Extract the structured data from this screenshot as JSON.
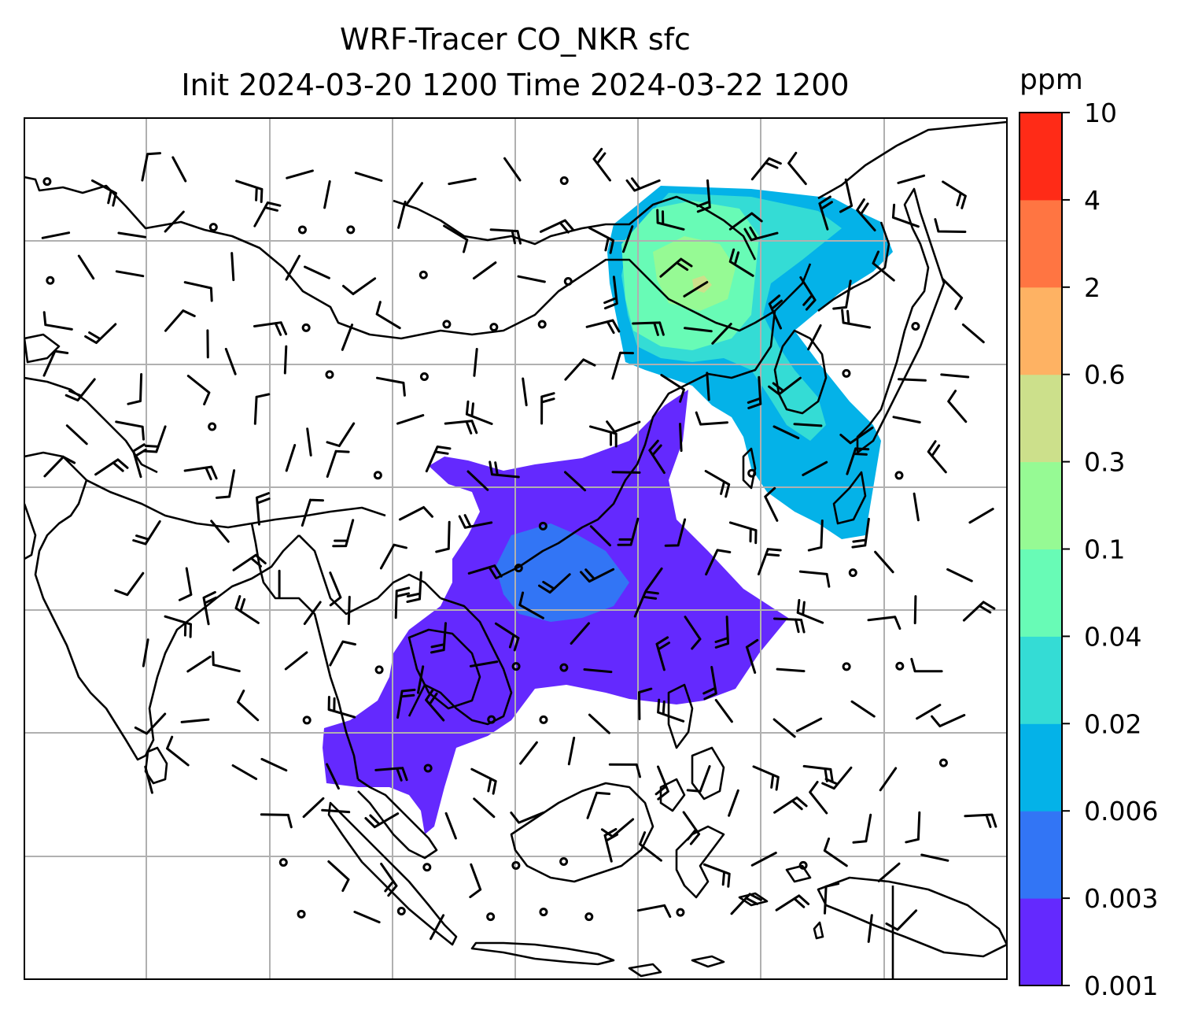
{
  "title": {
    "line1": "WRF-Tracer CO_NKR sfc",
    "line2": "Init 2024-03-20 1200 Time 2024-03-22 1200"
  },
  "colorbar": {
    "unit": "ppm",
    "levels": [
      "0.001",
      "0.003",
      "0.006",
      "0.02",
      "0.04",
      "0.1",
      "0.3",
      "0.6",
      "2",
      "4",
      "10"
    ],
    "colors": [
      "#6429fe",
      "#3275f5",
      "#04b2e8",
      "#34dcd5",
      "#68fbb6",
      "#96fa94",
      "#cce08b",
      "#feb263",
      "#ff7542",
      "#ff2b17"
    ]
  },
  "map": {
    "gridlines": true,
    "grid_color": "#b0b0b0",
    "coastline_color": "#000000",
    "wind_barb_color": "#000000"
  }
}
